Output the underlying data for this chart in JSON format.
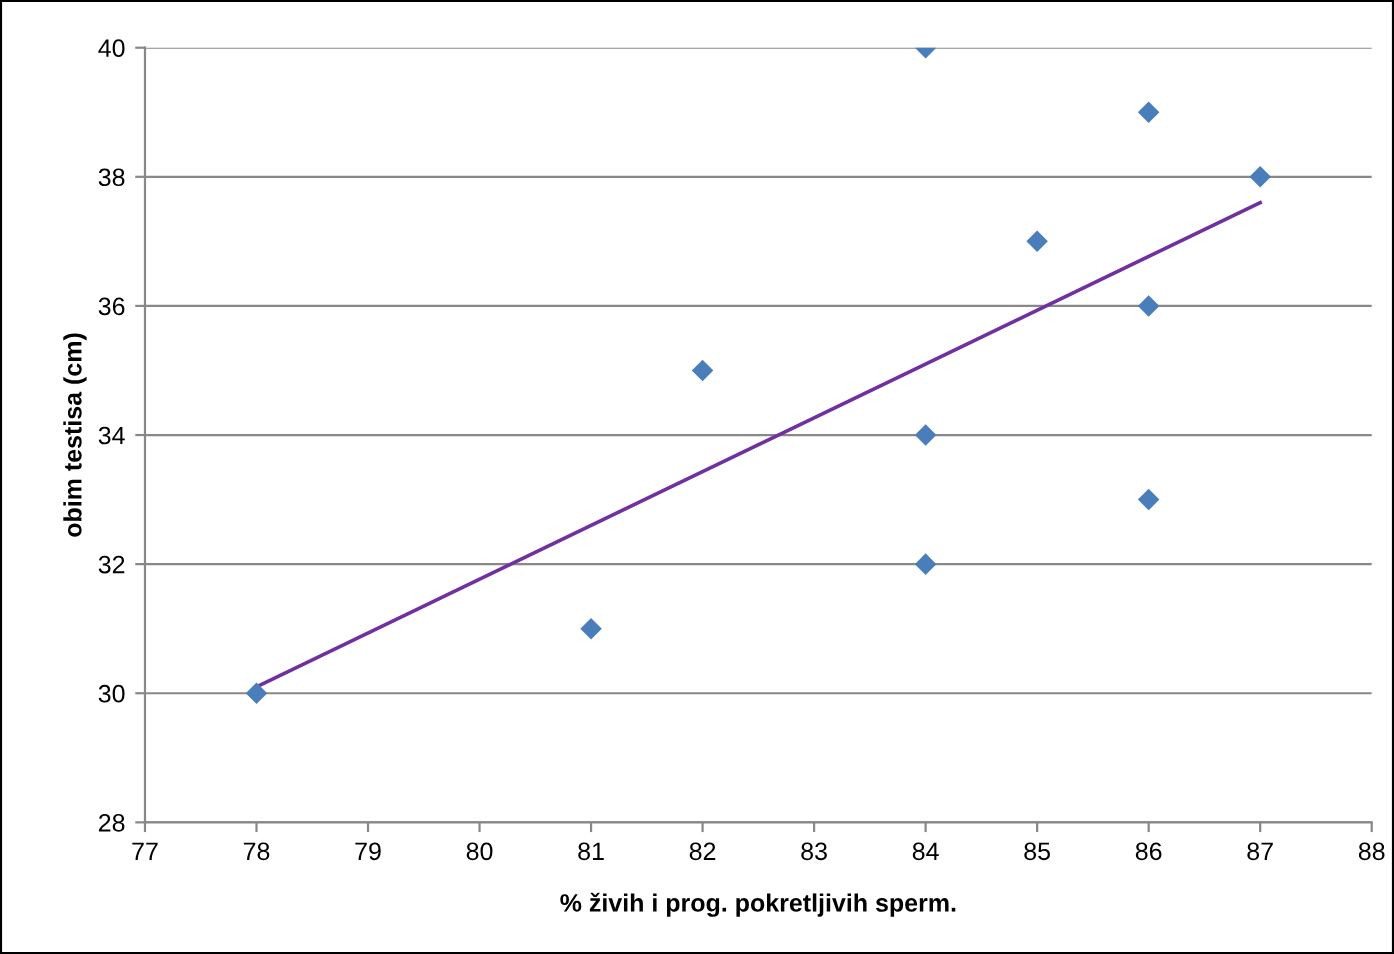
{
  "chart_data": {
    "type": "scatter",
    "xlabel": "% živih i prog. pokretljivih sperm.",
    "ylabel": "obim testisa (cm)",
    "x": [
      78,
      81,
      82,
      84,
      84,
      84,
      85,
      86,
      86,
      86,
      87
    ],
    "series": [
      {
        "color": "#4a7ebb",
        "marker": "diamond",
        "values": [
          30,
          31,
          35,
          40,
          34,
          32,
          37,
          39,
          36,
          33,
          38
        ]
      },
      {
        "type": "line",
        "color": "#7030a0",
        "x": [
          78,
          87
        ],
        "values": [
          30.1,
          37.6
        ],
        "line_style": "solid"
      }
    ],
    "xlim": [
      77,
      88
    ],
    "xticks": [
      77,
      78,
      79,
      80,
      81,
      82,
      83,
      84,
      85,
      86,
      87,
      88
    ],
    "ylim": [
      28,
      40
    ],
    "yticks": [
      28,
      30,
      32,
      34,
      36,
      38,
      40
    ],
    "grid": "y",
    "legend": false
  }
}
